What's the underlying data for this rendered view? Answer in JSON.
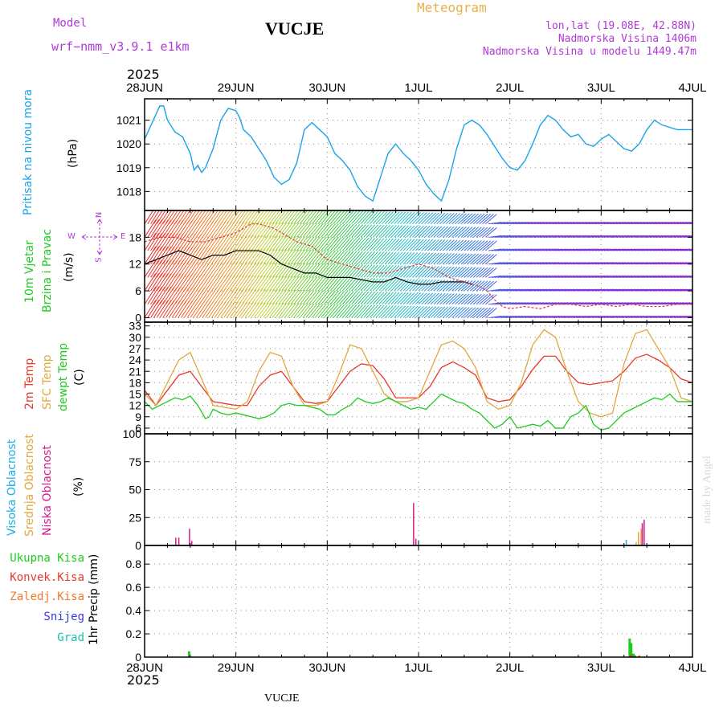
{
  "header": {
    "model_label": "Model",
    "model_name": "wrf−nmm_v3.9.1  e1km",
    "station": "VUCJE",
    "meteogram": "Meteogram",
    "lonlat": "lon,lat (19.08E, 42.88N)",
    "altitude": "Nadmorska Visina 1406m",
    "altitude_model": "Nadmorska Visina u modelu 1449.47m",
    "footer_station": "VUCJE",
    "watermark": "made by Angel",
    "year_top": "2025",
    "year_bottom": "2025"
  },
  "colors": {
    "pressure": "#1aa3e8",
    "purple": "#b03ad6",
    "orange_title": "#e8b04a",
    "temp": "#e8382a",
    "sfc": "#e0a83c",
    "dewpt": "#1ecc1e",
    "high_cloud": "#1ab0e8",
    "mid_cloud": "#e0a83c",
    "low_cloud": "#d61a8a",
    "total_precip": "#1ecc1e",
    "conv_precip": "#e8382a",
    "frozen_precip": "#f07a2a",
    "snow": "#3a3ae0",
    "hail": "#1ac0b0"
  },
  "labels": {
    "pressure_title": "Pritisak na nivou mora",
    "pressure_unit": "(hPa)",
    "wind_title_1": "10m Vjetar",
    "wind_title_2": "Brzina i Pravac",
    "wind_unit": "(m/s)",
    "compass_n": "N",
    "compass_w": "W",
    "compass_e": "E",
    "compass_s": "S",
    "temp_title_1": "2m Temp",
    "temp_title_2": "SFC Temp",
    "temp_title_3": "dewpt Temp",
    "temp_unit": "(C)",
    "cloud_title_1": "Visoka Oblacnost",
    "cloud_title_2": "Srednja Oblacnost",
    "cloud_title_3": "Niska Oblacnost",
    "cloud_unit": "(%)",
    "precip_1": "Ukupna Kisa",
    "precip_2": "Konvek.Kisa",
    "precip_3": "Zaledj.Kisa",
    "precip_4": "Snijeg",
    "precip_5": "Grad",
    "precip_axis": "1hr Precip (mm)"
  },
  "chart_data": [
    {
      "type": "line",
      "id": "pressure",
      "x_ticks": [
        "28JUN",
        "29JUN",
        "30JUN",
        "1JUL",
        "2JUL",
        "3JUL",
        "4JUL"
      ],
      "x_range_hours": [
        0,
        144
      ],
      "y_ticks": [
        "1018",
        "1019",
        "1020",
        "1021"
      ],
      "ylim": [
        1017.2,
        1021.9
      ],
      "series": [
        {
          "x": [
            0,
            2,
            4,
            5,
            6,
            8,
            10,
            12,
            13,
            14,
            15,
            16,
            18,
            20,
            22,
            24,
            25,
            26,
            28,
            30,
            32,
            34,
            36,
            38,
            40,
            42,
            44,
            46,
            48,
            50,
            52,
            54,
            56,
            58,
            60,
            62,
            64,
            66,
            68,
            70,
            72,
            74,
            76,
            78,
            80,
            82,
            84,
            86,
            88,
            90,
            92,
            94,
            96,
            98,
            100,
            102,
            104,
            106,
            108,
            110,
            112,
            114,
            116,
            118,
            120,
            122,
            124,
            126,
            128,
            130,
            132,
            134,
            136,
            138,
            140,
            142,
            144
          ],
          "values": [
            1020.2,
            1020.9,
            1021.6,
            1021.6,
            1021.0,
            1020.5,
            1020.3,
            1019.6,
            1018.9,
            1019.1,
            1018.8,
            1019.0,
            1019.8,
            1021.0,
            1021.5,
            1021.4,
            1021.1,
            1020.6,
            1020.3,
            1019.8,
            1019.3,
            1018.6,
            1018.3,
            1018.5,
            1019.2,
            1020.6,
            1020.9,
            1020.6,
            1020.3,
            1019.6,
            1019.3,
            1018.9,
            1018.2,
            1017.8,
            1017.6,
            1018.6,
            1019.6,
            1020.0,
            1019.6,
            1019.3,
            1018.9,
            1018.3,
            1017.9,
            1017.6,
            1018.5,
            1019.8,
            1020.8,
            1021.0,
            1020.8,
            1020.4,
            1019.9,
            1019.4,
            1019.0,
            1018.9,
            1019.3,
            1020.0,
            1020.8,
            1021.2,
            1021.0,
            1020.6,
            1020.3,
            1020.4,
            1020.0,
            1019.9,
            1020.2,
            1020.4,
            1020.1,
            1019.8,
            1019.7,
            1020.0,
            1020.6,
            1021.0,
            1020.8,
            1020.7,
            1020.6,
            1020.6,
            1020.6
          ]
        }
      ]
    },
    {
      "type": "line",
      "id": "wind",
      "y_ticks": [
        "0",
        "6",
        "12",
        "18"
      ],
      "ylim": [
        -1,
        24
      ],
      "series": [
        {
          "name": "wind speed",
          "x": [
            0,
            3,
            6,
            9,
            12,
            15,
            18,
            21,
            24,
            27,
            30,
            33,
            36,
            39,
            42,
            45,
            48,
            51,
            54,
            57,
            60,
            63,
            66,
            69,
            72,
            75,
            78,
            81,
            84,
            86
          ],
          "values": [
            12,
            13,
            14,
            15,
            14,
            13,
            14,
            14,
            15,
            15,
            15,
            14,
            12,
            11,
            10,
            10,
            9,
            9,
            9,
            8.5,
            8,
            8,
            9,
            8,
            7.5,
            7.5,
            8,
            8,
            8,
            7.5
          ]
        },
        {
          "name": "wind gust",
          "x": [
            0,
            4,
            8,
            12,
            16,
            20,
            24,
            28,
            30,
            34,
            38,
            40,
            44,
            48,
            52,
            56,
            60,
            64,
            68,
            72,
            76,
            80,
            84,
            86,
            88,
            90,
            92,
            94,
            96,
            100,
            104,
            108,
            112,
            116,
            120,
            124,
            128,
            132,
            136,
            140,
            144
          ],
          "values": [
            17,
            18,
            18,
            17,
            17,
            18,
            19,
            21,
            21,
            20,
            18,
            17,
            16,
            13,
            12,
            11,
            10,
            10,
            11,
            12,
            11,
            9,
            8,
            7.5,
            7,
            6,
            4,
            2.5,
            2,
            2.5,
            2,
            3,
            3,
            2.5,
            3,
            2.5,
            3,
            2.5,
            2.5,
            3,
            3
          ]
        }
      ]
    },
    {
      "type": "line",
      "id": "temperature",
      "y_ticks": [
        "6",
        "9",
        "12",
        "15",
        "18",
        "21",
        "24",
        "27",
        "30",
        "33"
      ],
      "ylim": [
        4.5,
        34
      ],
      "series": [
        {
          "x": [
            0,
            3,
            6,
            9,
            12,
            15,
            18,
            21,
            24,
            27,
            30,
            33,
            36,
            39,
            42,
            45,
            48,
            51,
            54,
            57,
            60,
            63,
            66,
            69,
            72,
            75,
            78,
            81,
            84,
            87,
            90,
            93,
            96,
            99,
            102,
            105,
            108,
            111,
            114,
            117,
            120,
            123,
            126,
            129,
            132,
            135,
            138,
            141,
            144
          ],
          "values": [
            16,
            12,
            16,
            20,
            21,
            17,
            13,
            12.5,
            12,
            12,
            17,
            20,
            21,
            17,
            13,
            12.5,
            13,
            17,
            21,
            23,
            22.5,
            19,
            14,
            14,
            14,
            17,
            22,
            23.5,
            22,
            20,
            14,
            13,
            13.5,
            17,
            21.5,
            25,
            25,
            21,
            18,
            17.5,
            18,
            18.5,
            21,
            24.5,
            25.5,
            24,
            22,
            19,
            18
          ]
        },
        {
          "x": [
            0,
            3,
            6,
            9,
            12,
            15,
            18,
            21,
            24,
            27,
            30,
            33,
            36,
            39,
            42,
            45,
            48,
            51,
            54,
            57,
            60,
            63,
            66,
            69,
            72,
            75,
            78,
            81,
            84,
            87,
            90,
            93,
            96,
            99,
            102,
            105,
            108,
            111,
            114,
            117,
            120,
            123,
            126,
            129,
            132,
            135,
            138,
            141,
            144
          ],
          "values": [
            15,
            12,
            18,
            24,
            26,
            19,
            12,
            11.5,
            11,
            13,
            21,
            26,
            25,
            17,
            12,
            12,
            13,
            20,
            28,
            27,
            21,
            15,
            13,
            13,
            14,
            21,
            28,
            29,
            27,
            22,
            13,
            11,
            12,
            18,
            28,
            32,
            30,
            21,
            13,
            10,
            9,
            10,
            23,
            31,
            32,
            27,
            22,
            14,
            13
          ]
        },
        {
          "x": [
            0,
            2,
            4,
            6,
            8,
            10,
            12,
            14,
            16,
            17,
            18,
            20,
            22,
            24,
            26,
            28,
            30,
            32,
            34,
            36,
            38,
            40,
            42,
            44,
            46,
            48,
            50,
            52,
            54,
            56,
            58,
            60,
            62,
            64,
            66,
            68,
            70,
            72,
            74,
            76,
            78,
            80,
            82,
            84,
            86,
            88,
            90,
            92,
            94,
            96,
            98,
            100,
            102,
            104,
            106,
            108,
            110,
            112,
            114,
            116,
            118,
            120,
            122,
            124,
            126,
            128,
            130,
            132,
            134,
            136,
            138,
            140,
            142,
            144
          ],
          "values": [
            13,
            11,
            12,
            13,
            14,
            13.5,
            14.5,
            12,
            8.5,
            9,
            11,
            10,
            9.5,
            10,
            9.5,
            9,
            8.5,
            9,
            10,
            12,
            12.5,
            12,
            12,
            11.5,
            11,
            9.5,
            9.5,
            11,
            12,
            14,
            13,
            12.5,
            13,
            14,
            13,
            12,
            11,
            11.5,
            11,
            13,
            15,
            14,
            13,
            12.5,
            11,
            10,
            8,
            6,
            7,
            9,
            6,
            6.5,
            7,
            6.5,
            8,
            6,
            6,
            9,
            10,
            12,
            7,
            5.5,
            6,
            8,
            10,
            11,
            12,
            13,
            14,
            13.5,
            15,
            13,
            13,
            13
          ]
        }
      ]
    },
    {
      "type": "bar",
      "id": "cloud",
      "y_ticks": [
        "0",
        "25",
        "50",
        "75",
        "100"
      ],
      "ylim": [
        0,
        100
      ],
      "series": [
        {
          "x": [
            126.6
          ],
          "values": [
            5
          ]
        },
        {
          "x": [
            129.2,
            129.8,
            130.5
          ],
          "values": [
            3,
            12,
            15
          ]
        },
        {
          "x": [
            8.2,
            9.0,
            11.8,
            12.4,
            70.7,
            71.3,
            130.8,
            131.3
          ],
          "values": [
            7,
            7,
            15,
            4,
            38,
            6,
            20,
            23
          ]
        }
      ]
    },
    {
      "type": "bar",
      "id": "precip",
      "y_ticks": [
        "0",
        "0.2",
        "0.4",
        "0.6",
        "0.8"
      ],
      "ylim": [
        0,
        0.96
      ],
      "series": [
        {
          "x": [
            11.7,
            127.5,
            127.9,
            128.5,
            128.9
          ],
          "values": [
            0.05,
            0.16,
            0.12,
            0.03,
            0.015
          ]
        },
        {
          "x": [
            127.9
          ],
          "values": [
            0.02
          ]
        },
        {
          "x": [
            130.0
          ],
          "values": [
            0.015
          ]
        }
      ]
    }
  ]
}
